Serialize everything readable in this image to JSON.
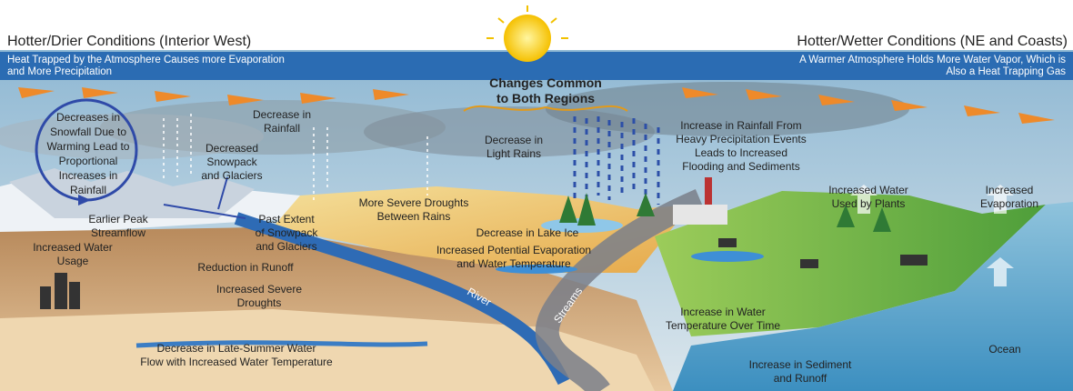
{
  "headers": {
    "left": "Hotter/Drier Conditions (Interior West)",
    "right": "Hotter/Wetter Conditions (NE and Coasts)"
  },
  "banners": {
    "left": [
      "Heat Trapped by the Atmosphere Causes more Evaporation",
      "and More Precipitation"
    ],
    "right": [
      "A Warmer Atmosphere Holds More Water Vapor, Which is",
      "Also a Heat Trapping Gas"
    ]
  },
  "center_label": [
    "Changes Common",
    "to Both Regions"
  ],
  "labels": [
    [
      "Decrease in",
      "Rainfall"
    ],
    [
      "Decreases in",
      "Snowfall Due to",
      "Warming  Lead to",
      "Proportional",
      "Increases in",
      "Rainfall"
    ],
    [
      "Decreased",
      "Snowpack",
      "and Glaciers"
    ],
    [
      "Decrease in",
      "Light Rains"
    ],
    [
      "Increase in Rainfall From",
      "Heavy Precipitation Events",
      "Leads to Increased",
      "Flooding and Sediments"
    ],
    [
      "Increased Water",
      "Used by Plants"
    ],
    [
      "Increased",
      "Evaporation"
    ],
    [
      "More Severe Droughts",
      "Between Rains"
    ],
    [
      "Earlier Peak",
      "Streamflow"
    ],
    [
      "Past Extent",
      "of Snowpack",
      "and Glaciers"
    ],
    [
      "Decrease in Lake Ice"
    ],
    [
      "Increased Potential Evaporation",
      "and Water Temperature"
    ],
    [
      "Increased Water",
      "Usage"
    ],
    [
      "Reduction in Runoff"
    ],
    [
      "Increased Severe",
      "Droughts"
    ],
    [
      "River"
    ],
    [
      "Streams"
    ],
    [
      "Increase in Water",
      "Temperature Over Time"
    ],
    [
      "Decrease in Late-Summer Water",
      "Flow with Increased Water Temperature"
    ],
    [
      "Ocean"
    ],
    [
      "Increase in Sediment",
      "and Runoff"
    ]
  ]
}
